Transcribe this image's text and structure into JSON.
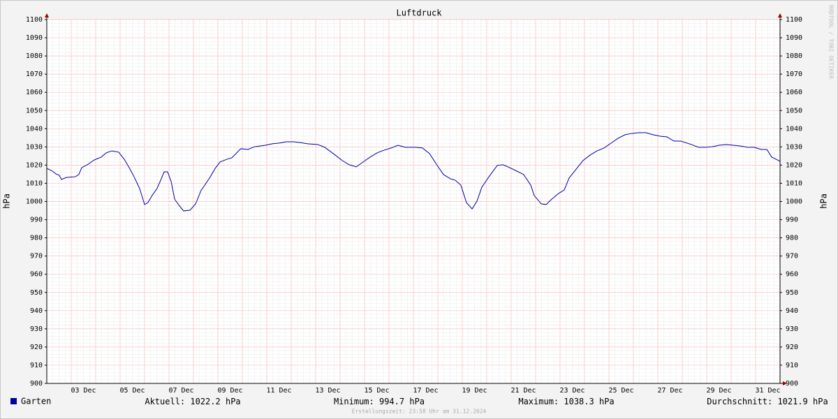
{
  "chart_data": {
    "type": "line",
    "title": "Luftdruck",
    "ylabel": "hPa",
    "y2label": "hPa",
    "watermark": "RRDTOOL / TOBI OETIKER",
    "footer": "Erstellungszeit: 23:58 Uhr am 31.12.2024",
    "x": [
      2.0,
      2.23,
      2.37,
      2.51,
      2.6,
      2.8,
      3.17,
      3.31,
      3.43,
      3.66,
      3.94,
      4.23,
      4.43,
      4.66,
      4.94,
      5.17,
      5.37,
      5.57,
      5.8,
      6.0,
      6.14,
      6.31,
      6.51,
      6.66,
      6.8,
      6.94,
      7.09,
      7.23,
      7.43,
      7.6,
      7.86,
      8.09,
      8.31,
      8.66,
      8.89,
      9.09,
      9.37,
      9.57,
      9.94,
      10.23,
      10.51,
      10.94,
      11.23,
      11.51,
      11.8,
      12.09,
      12.37,
      12.66,
      13.09,
      13.37,
      13.8,
      14.09,
      14.37,
      14.66,
      14.94,
      15.23,
      15.51,
      15.8,
      16.09,
      16.37,
      16.66,
      17.09,
      17.37,
      17.66,
      17.94,
      18.23,
      18.51,
      18.71,
      18.94,
      19.17,
      19.4,
      19.6,
      19.8,
      20.09,
      20.43,
      20.66,
      20.94,
      21.23,
      21.51,
      21.8,
      21.94,
      22.23,
      22.43,
      22.66,
      22.94,
      23.17,
      23.37,
      23.66,
      23.94,
      24.23,
      24.51,
      24.8,
      25.09,
      25.37,
      25.66,
      25.94,
      26.23,
      26.51,
      26.8,
      27.09,
      27.37,
      27.66,
      27.94,
      28.37,
      28.66,
      28.94,
      29.23,
      29.51,
      29.8,
      30.09,
      30.37,
      30.66,
      30.94,
      31.23,
      31.46,
      31.66,
      32.0
    ],
    "series": [
      {
        "name": "Garten",
        "color": "#0000a0",
        "values": [
          1018.2,
          1016.7,
          1015.2,
          1014.4,
          1012.1,
          1013.2,
          1013.6,
          1014.8,
          1018.6,
          1020.2,
          1022.8,
          1024.4,
          1026.7,
          1027.8,
          1027.1,
          1023.2,
          1018.6,
          1013.6,
          1007.1,
          998.3,
          999.4,
          1003.3,
          1007.1,
          1011.7,
          1016.3,
          1016.3,
          1010.9,
          1001.3,
          997.5,
          994.8,
          995.2,
          998.7,
          1006.0,
          1012.9,
          1018.2,
          1021.7,
          1023.2,
          1024.0,
          1029.0,
          1028.6,
          1030.1,
          1030.9,
          1031.7,
          1032.1,
          1032.8,
          1032.8,
          1032.4,
          1031.7,
          1031.3,
          1029.8,
          1025.5,
          1022.5,
          1020.2,
          1019.0,
          1021.7,
          1024.4,
          1026.7,
          1028.2,
          1029.4,
          1030.9,
          1029.8,
          1029.8,
          1029.4,
          1026.3,
          1020.5,
          1014.8,
          1012.5,
          1011.7,
          1009.0,
          999.4,
          995.9,
          1000.2,
          1007.9,
          1013.6,
          1019.8,
          1020.2,
          1018.6,
          1016.7,
          1014.8,
          1009.0,
          1003.3,
          998.7,
          998.3,
          1001.3,
          1004.4,
          1006.3,
          1012.9,
          1017.8,
          1022.5,
          1025.5,
          1027.8,
          1029.4,
          1032.1,
          1034.7,
          1036.7,
          1037.4,
          1037.8,
          1037.8,
          1036.7,
          1035.9,
          1035.5,
          1033.2,
          1033.2,
          1031.3,
          1029.8,
          1029.8,
          1030.1,
          1030.9,
          1031.3,
          1030.9,
          1030.5,
          1029.8,
          1029.8,
          1028.6,
          1028.6,
          1024.4,
          1022.1
        ]
      }
    ],
    "xlim": [
      2,
      32
    ],
    "xticks": [
      {
        "value": 3.5,
        "label": "03 Dec"
      },
      {
        "value": 5.5,
        "label": "05 Dec"
      },
      {
        "value": 7.5,
        "label": "07 Dec"
      },
      {
        "value": 9.5,
        "label": "09 Dec"
      },
      {
        "value": 11.5,
        "label": "11 Dec"
      },
      {
        "value": 13.5,
        "label": "13 Dec"
      },
      {
        "value": 15.5,
        "label": "15 Dec"
      },
      {
        "value": 17.5,
        "label": "17 Dec"
      },
      {
        "value": 19.5,
        "label": "19 Dec"
      },
      {
        "value": 21.5,
        "label": "21 Dec"
      },
      {
        "value": 23.5,
        "label": "23 Dec"
      },
      {
        "value": 25.5,
        "label": "25 Dec"
      },
      {
        "value": 27.5,
        "label": "27 Dec"
      },
      {
        "value": 29.5,
        "label": "29 Dec"
      },
      {
        "value": 31.5,
        "label": "31 Dec"
      }
    ],
    "ylim": [
      900,
      1100
    ],
    "yticks": [
      900,
      910,
      920,
      930,
      940,
      950,
      960,
      970,
      980,
      990,
      1000,
      1010,
      1020,
      1030,
      1040,
      1050,
      1060,
      1070,
      1080,
      1090,
      1100
    ],
    "y2lim": [
      900,
      1100
    ],
    "y2ticks": [
      900,
      910,
      920,
      930,
      940,
      950,
      960,
      970,
      980,
      990,
      1000,
      1010,
      1020,
      1030,
      1040,
      1050,
      1060,
      1070,
      1080,
      1090,
      1100
    ],
    "grid": true,
    "stats": [
      {
        "label": "Aktuell:",
        "value": 1022.2,
        "unit": "hPa"
      },
      {
        "label": "Minimum:",
        "value": 994.7,
        "unit": "hPa"
      },
      {
        "label": "Maximum:",
        "value": 1038.3,
        "unit": "hPa"
      },
      {
        "label": "Durchschnitt:",
        "value": 1021.9,
        "unit": "hPa"
      }
    ]
  }
}
